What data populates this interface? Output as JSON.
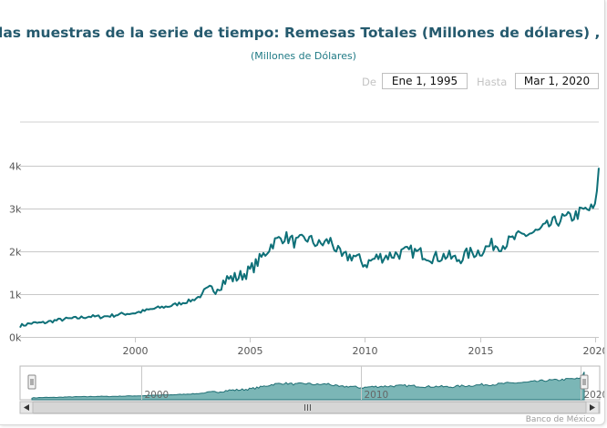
{
  "chart_data": {
    "type": "line",
    "title": "las muestras de la serie de tiempo:  Remesas Totales (Millones de dólares) , unidades: Millones de Dólares",
    "subtitle": "(Millones de Dólares)",
    "x_ticks": [
      "2000",
      "2005",
      "2010",
      "2015",
      "2020"
    ],
    "y_ticks": [
      "0k",
      "1k",
      "2k",
      "3k",
      "4k"
    ],
    "ylim": [
      0,
      4000
    ],
    "xlim": [
      "1995-01",
      "2020-03"
    ],
    "color": "#0e7078",
    "navigator_fill": "#7bb6b6",
    "navigator_ticks": [
      "2000",
      "2010",
      "2020"
    ],
    "series": [
      {
        "x": [
          "1995-01",
          "1995-07",
          "1996-01",
          "1996-07",
          "1997-01",
          "1997-07",
          "1998-01",
          "1998-07",
          "1999-01",
          "1999-07",
          "2000-01",
          "2000-07",
          "2001-01",
          "2001-07",
          "2002-01",
          "2002-07",
          "2003-01",
          "2003-07",
          "2004-01",
          "2004-07",
          "2005-01",
          "2005-07",
          "2006-01",
          "2006-07",
          "2007-01",
          "2007-07",
          "2008-01",
          "2008-07",
          "2009-01",
          "2009-07",
          "2010-01",
          "2010-07",
          "2011-01",
          "2011-07",
          "2012-01",
          "2012-07",
          "2013-01",
          "2013-07",
          "2014-01",
          "2014-07",
          "2015-01",
          "2015-07",
          "2016-01",
          "2016-07",
          "2017-01",
          "2017-07",
          "2018-01",
          "2018-07",
          "2019-01",
          "2019-07",
          "2020-01",
          "2020-03"
        ],
        "values": [
          260,
          320,
          330,
          380,
          420,
          440,
          480,
          470,
          500,
          540,
          560,
          620,
          680,
          720,
          790,
          860,
          1000,
          1150,
          1350,
          1400,
          1550,
          1850,
          2200,
          2350,
          2200,
          2300,
          2150,
          2250,
          1850,
          1900,
          1700,
          1850,
          1900,
          1950,
          2000,
          1950,
          1850,
          1900,
          1800,
          1950,
          2000,
          2150,
          2150,
          2300,
          2400,
          2450,
          2600,
          2750,
          2800,
          2950,
          3000,
          3950
        ]
      }
    ]
  },
  "range": {
    "from_label": "De",
    "from_value": "Ene 1, 1995",
    "to_label": "Hasta",
    "to_value": "Mar 1, 2020"
  },
  "credits": "Banco de México"
}
